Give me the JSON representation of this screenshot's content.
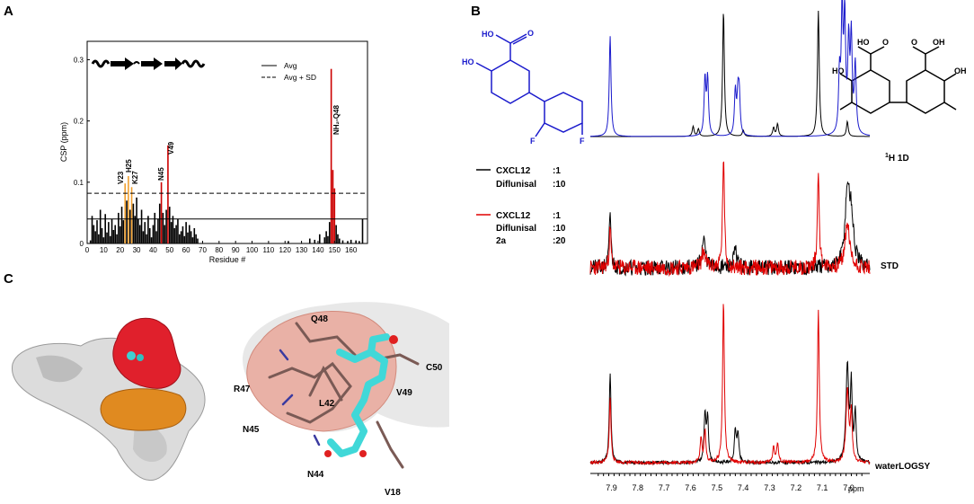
{
  "panels": {
    "A": {
      "letter": "A",
      "chart_data": {
        "type": "bar",
        "xlabel": "Residue #",
        "ylabel": "CSP (ppm)",
        "xlim": [
          0,
          170
        ],
        "ylim": [
          0,
          0.33
        ],
        "xticks": [
          "0",
          "10",
          "20",
          "30",
          "40",
          "50",
          "60",
          "70",
          "80",
          "90",
          "100",
          "110",
          "120",
          "130",
          "140",
          "150",
          "160"
        ],
        "yticks": [
          "0",
          "0.1",
          "0.2",
          "0.3"
        ],
        "legend": [
          {
            "label": "Avg",
            "style": "solid"
          },
          {
            "label": "Avg + SD",
            "style": "dashed"
          }
        ],
        "avg": 0.04,
        "avg_plus_sd": 0.082,
        "series": [
          {
            "values": [
              {
                "x": 2,
                "y": 0.005
              },
              {
                "x": 3,
                "y": 0.045
              },
              {
                "x": 4,
                "y": 0.03
              },
              {
                "x": 5,
                "y": 0.02
              },
              {
                "x": 6,
                "y": 0.038
              },
              {
                "x": 7,
                "y": 0.015
              },
              {
                "x": 8,
                "y": 0.055
              },
              {
                "x": 9,
                "y": 0.025
              },
              {
                "x": 10,
                "y": 0.01
              },
              {
                "x": 11,
                "y": 0.048
              },
              {
                "x": 12,
                "y": 0.018
              },
              {
                "x": 13,
                "y": 0.035
              },
              {
                "x": 14,
                "y": 0.012
              },
              {
                "x": 15,
                "y": 0.04
              },
              {
                "x": 16,
                "y": 0.022
              },
              {
                "x": 17,
                "y": 0.03
              },
              {
                "x": 18,
                "y": 0.015
              },
              {
                "x": 19,
                "y": 0.05
              },
              {
                "x": 20,
                "y": 0.028
              },
              {
                "x": 21,
                "y": 0.06
              },
              {
                "x": 22,
                "y": 0.038
              },
              {
                "x": 23,
                "y": 0.098
              },
              {
                "x": 24,
                "y": 0.07
              },
              {
                "x": 25,
                "y": 0.11
              },
              {
                "x": 26,
                "y": 0.055
              },
              {
                "x": 27,
                "y": 0.092
              },
              {
                "x": 28,
                "y": 0.065
              },
              {
                "x": 29,
                "y": 0.045
              },
              {
                "x": 30,
                "y": 0.075
              },
              {
                "x": 31,
                "y": 0.04
              },
              {
                "x": 32,
                "y": 0.03
              },
              {
                "x": 33,
                "y": 0.055
              },
              {
                "x": 34,
                "y": 0.02
              },
              {
                "x": 35,
                "y": 0.035
              },
              {
                "x": 36,
                "y": 0.015
              },
              {
                "x": 37,
                "y": 0.045
              },
              {
                "x": 38,
                "y": 0.025
              },
              {
                "x": 39,
                "y": 0.01
              },
              {
                "x": 40,
                "y": 0.03
              },
              {
                "x": 41,
                "y": 0.05
              },
              {
                "x": 42,
                "y": 0.02
              },
              {
                "x": 43,
                "y": 0.04
              },
              {
                "x": 44,
                "y": 0.065
              },
              {
                "x": 45,
                "y": 0.1
              },
              {
                "x": 46,
                "y": 0.05
              },
              {
                "x": 47,
                "y": 0.03
              },
              {
                "x": 48,
                "y": 0.055
              },
              {
                "x": 49,
                "y": 0.16
              },
              {
                "x": 50,
                "y": 0.06
              },
              {
                "x": 51,
                "y": 0.035
              },
              {
                "x": 52,
                "y": 0.045
              },
              {
                "x": 53,
                "y": 0.025
              },
              {
                "x": 54,
                "y": 0.03
              },
              {
                "x": 55,
                "y": 0.04
              },
              {
                "x": 56,
                "y": 0.015
              },
              {
                "x": 57,
                "y": 0.02
              },
              {
                "x": 58,
                "y": 0.028
              },
              {
                "x": 59,
                "y": 0.012
              },
              {
                "x": 60,
                "y": 0.035
              },
              {
                "x": 61,
                "y": 0.018
              },
              {
                "x": 62,
                "y": 0.03
              },
              {
                "x": 63,
                "y": 0.02
              },
              {
                "x": 64,
                "y": 0.01
              },
              {
                "x": 65,
                "y": 0.025
              },
              {
                "x": 66,
                "y": 0.015
              },
              {
                "x": 67,
                "y": 0.008
              },
              {
                "x": 122,
                "y": 0.004
              },
              {
                "x": 135,
                "y": 0.008
              },
              {
                "x": 138,
                "y": 0.006
              },
              {
                "x": 141,
                "y": 0.015
              },
              {
                "x": 144,
                "y": 0.01
              },
              {
                "x": 145,
                "y": 0.02
              },
              {
                "x": 146,
                "y": 0.012
              },
              {
                "x": 147,
                "y": 0.035
              },
              {
                "x": 148,
                "y": 0.285
              },
              {
                "x": 149,
                "y": 0.12
              },
              {
                "x": 150,
                "y": 0.09
              },
              {
                "x": 151,
                "y": 0.03
              },
              {
                "x": 152,
                "y": 0.015
              },
              {
                "x": 153,
                "y": 0.008
              },
              {
                "x": 155,
                "y": 0.005
              },
              {
                "x": 158,
                "y": 0.004
              },
              {
                "x": 160,
                "y": 0.006
              },
              {
                "x": 163,
                "y": 0.005
              },
              {
                "x": 165,
                "y": 0.004
              },
              {
                "x": 167,
                "y": 0.04
              }
            ]
          }
        ],
        "highlight_colors": {
          "above_avg_sd": "#cc0000",
          "near_threshold": "#f0a030",
          "base": "#000000"
        },
        "annotations": [
          "V23",
          "H25",
          "K27",
          "N45",
          "V49",
          "NH₂-Q48"
        ]
      }
    },
    "B": {
      "letter": "B",
      "row_labels": [
        "1H 1D",
        "STD",
        "waterLOGSY"
      ],
      "legend": {
        "black": {
          "lines": [
            [
              "CXCL12",
              ":1"
            ],
            [
              "Diflunisal",
              ":10"
            ]
          ]
        },
        "red": {
          "lines": [
            [
              "CXCL12",
              ":1"
            ],
            [
              "Diflunisal",
              ":10"
            ],
            [
              "2a",
              ":20"
            ]
          ]
        }
      },
      "structure_labels": {
        "diflunisal": [
          "HO",
          "O",
          "HO",
          "F",
          "F"
        ],
        "compound_2a": [
          "HO",
          "O",
          "O",
          "OH",
          "OH",
          "HO"
        ]
      },
      "x_axis": {
        "ticks": [
          "7.9",
          "7.8",
          "7.7",
          "7.6",
          "7.5",
          "7.4",
          "7.3",
          "7.2",
          "7.1",
          "7.0"
        ],
        "unit": "ppm"
      },
      "colors": {
        "black": "#000000",
        "red": "#e00000",
        "blue": "#1a1acc"
      }
    },
    "C": {
      "letter": "C",
      "residue_labels": [
        "Q48",
        "C50",
        "R47",
        "L42",
        "V49",
        "N45",
        "N44",
        "V18"
      ]
    }
  }
}
